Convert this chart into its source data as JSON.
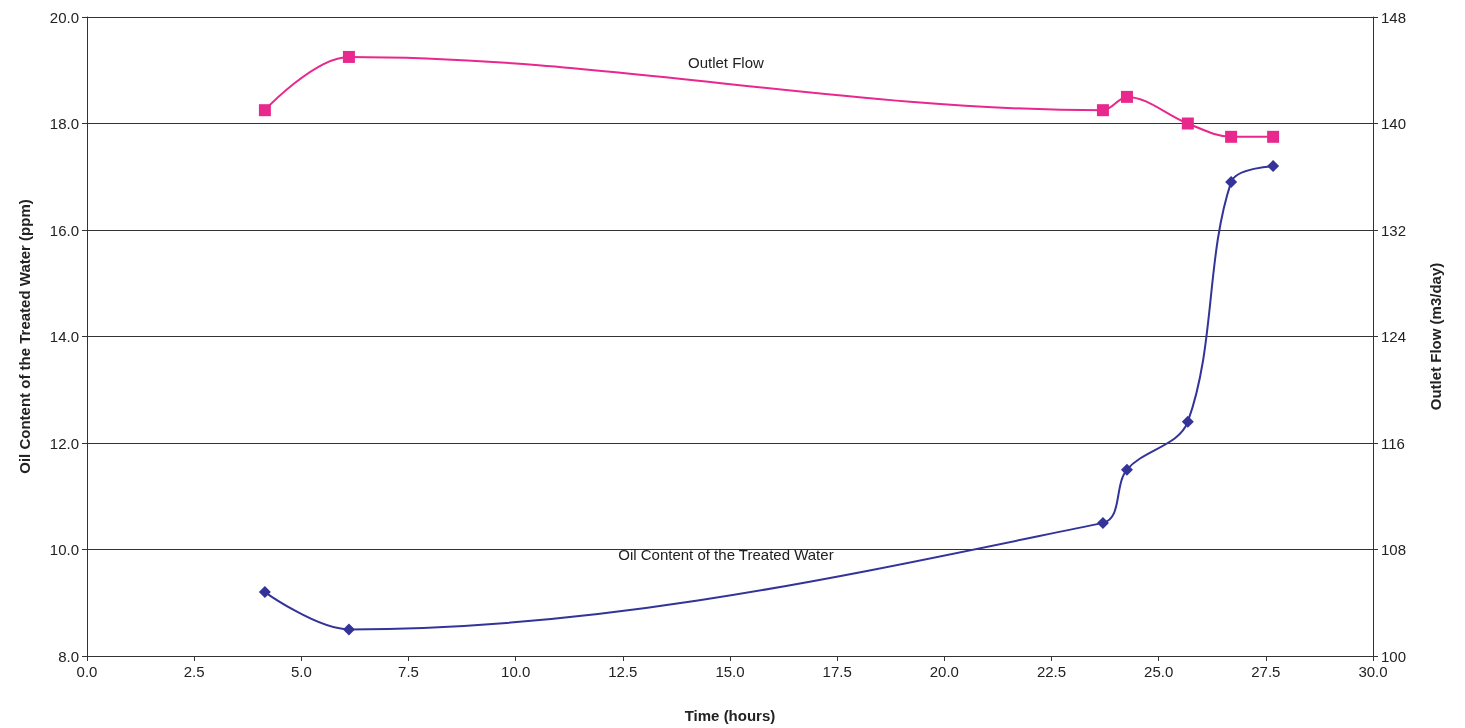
{
  "chart_data": {
    "type": "line",
    "xlabel": "Time (hours)",
    "ylabel": "Oil Content of the Treated Water (ppm)",
    "y2label": "Outlet Flow (m3/day)",
    "series": [
      {
        "name": "Oil Content of the Treated Water",
        "color": "#333399",
        "marker": "diamond",
        "x": [
          4.15,
          6.11,
          23.7,
          24.26,
          25.68,
          26.69,
          27.67
        ],
        "values": [
          9.2,
          8.5,
          10.5,
          11.5,
          12.4,
          16.9,
          17.2
        ]
      },
      {
        "name": "Outlet Flow",
        "color": "#e8288c",
        "marker": "square",
        "axis": "y2",
        "x": [
          4.15,
          6.11,
          23.7,
          24.26,
          25.68,
          26.69,
          27.67
        ],
        "values": [
          141,
          145,
          141,
          142,
          140,
          139,
          139
        ]
      }
    ],
    "xlim": [
      0,
      30
    ],
    "xticks": [
      {
        "value": 0,
        "label": "0.0"
      },
      {
        "value": 2.5,
        "label": "2.5"
      },
      {
        "value": 5,
        "label": "5.0"
      },
      {
        "value": 7.5,
        "label": "7.5"
      },
      {
        "value": 10,
        "label": "10.0"
      },
      {
        "value": 12.5,
        "label": "12.5"
      },
      {
        "value": 15,
        "label": "15.0"
      },
      {
        "value": 17.5,
        "label": "17.5"
      },
      {
        "value": 20,
        "label": "20.0"
      },
      {
        "value": 22.5,
        "label": "22.5"
      },
      {
        "value": 25,
        "label": "25.0"
      },
      {
        "value": 27.5,
        "label": "27.5"
      },
      {
        "value": 30,
        "label": "30.0"
      }
    ],
    "ylim": [
      8,
      20
    ],
    "yticks": [
      {
        "value": 8,
        "label": "8.0"
      },
      {
        "value": 10,
        "label": "10.0"
      },
      {
        "value": 12,
        "label": "12.0"
      },
      {
        "value": 14,
        "label": "14.0"
      },
      {
        "value": 16,
        "label": "16.0"
      },
      {
        "value": 18,
        "label": "18.0"
      },
      {
        "value": 20,
        "label": "20.0"
      }
    ],
    "y2lim": [
      100,
      148
    ],
    "y2ticks": [
      100,
      108,
      116,
      124,
      132,
      140,
      148
    ],
    "grid": "y",
    "legend": false
  }
}
